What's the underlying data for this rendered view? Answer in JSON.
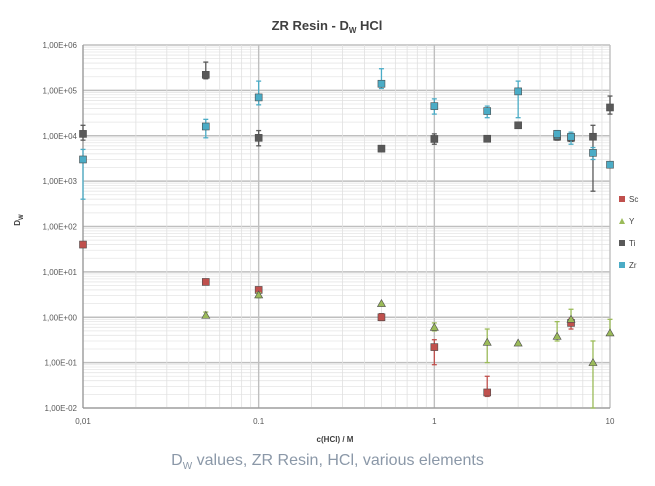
{
  "chart_data": {
    "type": "scatter",
    "title": "ZR Resin - D",
    "title_sub": "W",
    "title_suffix": " HCl",
    "xlabel": "c(HCl) / M",
    "ylabel": "D",
    "ylabel_sub": "W",
    "x_scale": "log",
    "y_scale": "log",
    "xlim": [
      0.01,
      10
    ],
    "ylim": [
      0.01,
      1000000
    ],
    "x_ticks": [
      {
        "value": 0.01,
        "label": "0,01"
      },
      {
        "value": 0.1,
        "label": "0.1"
      },
      {
        "value": 1,
        "label": "1"
      },
      {
        "value": 10,
        "label": "10"
      }
    ],
    "y_ticks": [
      {
        "value": 1000000,
        "label": "1,00E+06"
      },
      {
        "value": 100000,
        "label": "1,00E+05"
      },
      {
        "value": 10000,
        "label": "1,00E+04"
      },
      {
        "value": 1000,
        "label": "1,00E+03"
      },
      {
        "value": 100,
        "label": "1,00E+02"
      },
      {
        "value": 10,
        "label": "1,00E+01"
      },
      {
        "value": 1,
        "label": "1,00E+00"
      },
      {
        "value": 0.1,
        "label": "1,00E-01"
      },
      {
        "value": 0.01,
        "label": "1,00E-02"
      }
    ],
    "grid": true,
    "legend_position": "right",
    "series": [
      {
        "name": "Sc",
        "color": "#c0504d",
        "marker": "square",
        "points": [
          {
            "x": 0.01,
            "y": 40
          },
          {
            "x": 0.05,
            "y": 6
          },
          {
            "x": 0.1,
            "y": 4,
            "lo": 3,
            "hi": 4.6
          },
          {
            "x": 0.5,
            "y": 1.0,
            "lo": 0.85,
            "hi": 1.2
          },
          {
            "x": 1,
            "y": 0.22,
            "lo": 0.09,
            "hi": 0.32
          },
          {
            "x": 2,
            "y": 0.022,
            "lo": 0.018,
            "hi": 0.05
          },
          {
            "x": 6,
            "y": 0.75,
            "lo": 0.55,
            "hi": 0.95
          }
        ]
      },
      {
        "name": "Y",
        "color": "#9bbb59",
        "marker": "triangle",
        "points": [
          {
            "x": 0.05,
            "y": 1.1,
            "lo": 1.0,
            "hi": 1.3
          },
          {
            "x": 0.1,
            "y": 3.1,
            "lo": 2.7,
            "hi": 3.5
          },
          {
            "x": 0.5,
            "y": 2.0
          },
          {
            "x": 1,
            "y": 0.6,
            "lo": 0.5,
            "hi": 0.75
          },
          {
            "x": 2,
            "y": 0.28,
            "lo": 0.1,
            "hi": 0.55
          },
          {
            "x": 3,
            "y": 0.27
          },
          {
            "x": 5,
            "y": 0.38,
            "lo": 0.3,
            "hi": 0.8
          },
          {
            "x": 6,
            "y": 0.9,
            "lo": 0.8,
            "hi": 1.5
          },
          {
            "x": 8,
            "y": 0.1,
            "lo": 0.01,
            "hi": 0.3
          },
          {
            "x": 10,
            "y": 0.45,
            "lo": 0.4,
            "hi": 0.9
          }
        ]
      },
      {
        "name": "Ti",
        "color": "#595959",
        "marker": "square",
        "points": [
          {
            "x": 0.01,
            "y": 11000,
            "lo": 8000,
            "hi": 17000
          },
          {
            "x": 0.05,
            "y": 220000,
            "lo": 180000,
            "hi": 420000
          },
          {
            "x": 0.1,
            "y": 9000,
            "lo": 6000,
            "hi": 13000
          },
          {
            "x": 0.5,
            "y": 5200,
            "lo": 4500,
            "hi": 6000
          },
          {
            "x": 1,
            "y": 8500,
            "lo": 6500,
            "hi": 11000
          },
          {
            "x": 2,
            "y": 8600
          },
          {
            "x": 3,
            "y": 17000
          },
          {
            "x": 5,
            "y": 9500,
            "lo": 8000,
            "hi": 11000
          },
          {
            "x": 6,
            "y": 9000,
            "lo": 7500,
            "hi": 10500
          },
          {
            "x": 8,
            "y": 9500,
            "lo": 600,
            "hi": 17000
          },
          {
            "x": 10,
            "y": 42000,
            "lo": 30000,
            "hi": 75000
          }
        ]
      },
      {
        "name": "Zr",
        "color": "#4bacc6",
        "marker": "square",
        "points": [
          {
            "x": 0.01,
            "y": 3000,
            "lo": 400,
            "hi": 5000
          },
          {
            "x": 0.05,
            "y": 16000,
            "lo": 9000,
            "hi": 23000
          },
          {
            "x": 0.1,
            "y": 70000,
            "lo": 48000,
            "hi": 160000
          },
          {
            "x": 0.5,
            "y": 140000,
            "lo": 110000,
            "hi": 300000
          },
          {
            "x": 1,
            "y": 45000,
            "lo": 30000,
            "hi": 65000
          },
          {
            "x": 2,
            "y": 35000,
            "lo": 25000,
            "hi": 45000
          },
          {
            "x": 3,
            "y": 95000,
            "lo": 25000,
            "hi": 160000
          },
          {
            "x": 5,
            "y": 11000,
            "lo": 9000,
            "hi": 13000
          },
          {
            "x": 6,
            "y": 9500,
            "lo": 6500,
            "hi": 12000
          },
          {
            "x": 8,
            "y": 4200,
            "lo": 3000,
            "hi": 5500
          },
          {
            "x": 10,
            "y": 2300,
            "lo": 2000,
            "hi": 2600
          }
        ]
      }
    ]
  },
  "caption": {
    "main": "D",
    "sub": "W",
    "rest": " values, ZR Resin, HCl, various elements"
  }
}
